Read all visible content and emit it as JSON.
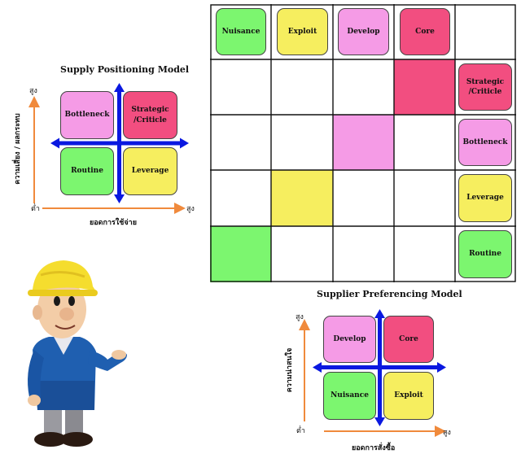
{
  "colors": {
    "green": "#7cf66f",
    "yellow": "#f6ee5f",
    "pink": "#f59be6",
    "red": "#f24e80",
    "blue_arrow": "#0a18e0",
    "orange_arrow": "#f08a3c"
  },
  "matrix": {
    "headers": [
      "Nuisance",
      "Exploit",
      "Develop",
      "Core"
    ],
    "rows": [
      "Strategic\n/Criticle",
      "Bottleneck",
      "Leverage",
      "Routine"
    ]
  },
  "spm": {
    "title": "Supply Positioning Model",
    "quadrants": {
      "top_left": "Bottleneck",
      "top_right": "Strategic\n/Criticle",
      "bottom_left": "Routine",
      "bottom_right": "Leverage"
    },
    "y_axis_label": "ความเสี่ยง / ผลกระทบ",
    "x_axis_label": "ยอดการใช้จ่าย",
    "high_y": "สูง",
    "high_x": "สูง",
    "low": "ต่ำ"
  },
  "spf": {
    "title": "Supplier Preferencing Model",
    "quadrants": {
      "top_left": "Develop",
      "top_right": "Core",
      "bottom_left": "Nuisance",
      "bottom_right": "Exploit"
    },
    "y_axis_label": "ความน่าสนใจ",
    "x_axis_label": "ยอดการสั่งซื้อ",
    "high_y": "สูง",
    "high_x": "สูง",
    "low": "ต่ำ"
  }
}
